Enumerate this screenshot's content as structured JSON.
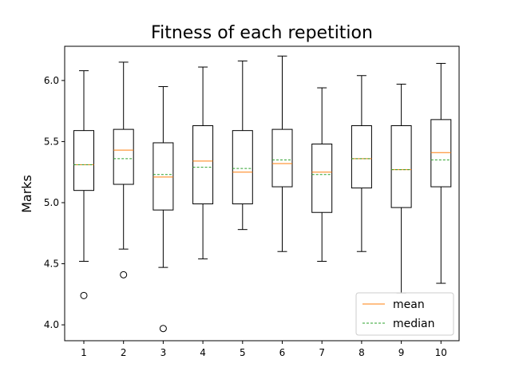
{
  "chart_data": {
    "type": "box",
    "title": "Fitness of each repetition",
    "xlabel": "",
    "ylabel": "Marks",
    "categories": [
      "1",
      "2",
      "3",
      "4",
      "5",
      "6",
      "7",
      "8",
      "9",
      "10"
    ],
    "ylim": [
      3.87,
      6.28
    ],
    "yticks": [
      "4.0",
      "4.5",
      "5.0",
      "5.5",
      "6.0"
    ],
    "grid": false,
    "legend_position": "bottom-right",
    "legend": [
      {
        "label": "mean",
        "style": "solid",
        "color": "#ff7f0e"
      },
      {
        "label": "median",
        "style": "dashed",
        "color": "#2ca02c"
      }
    ],
    "boxes": [
      {
        "category": "1",
        "whisker_low": 4.52,
        "q1": 5.1,
        "median": 5.31,
        "mean": 5.31,
        "q3": 5.59,
        "whisker_high": 6.08,
        "outliers": [
          4.24
        ]
      },
      {
        "category": "2",
        "whisker_low": 4.62,
        "q1": 5.15,
        "median": 5.36,
        "mean": 5.43,
        "q3": 5.6,
        "whisker_high": 6.15,
        "outliers": [
          4.41
        ]
      },
      {
        "category": "3",
        "whisker_low": 4.47,
        "q1": 4.94,
        "median": 5.23,
        "mean": 5.21,
        "q3": 5.49,
        "whisker_high": 5.95,
        "outliers": [
          3.97
        ]
      },
      {
        "category": "4",
        "whisker_low": 4.54,
        "q1": 4.99,
        "median": 5.29,
        "mean": 5.34,
        "q3": 5.63,
        "whisker_high": 6.11,
        "outliers": []
      },
      {
        "category": "5",
        "whisker_low": 4.78,
        "q1": 4.99,
        "median": 5.28,
        "mean": 5.25,
        "q3": 5.59,
        "whisker_high": 6.16,
        "outliers": []
      },
      {
        "category": "6",
        "whisker_low": 4.6,
        "q1": 5.13,
        "median": 5.35,
        "mean": 5.32,
        "q3": 5.6,
        "whisker_high": 6.2,
        "outliers": []
      },
      {
        "category": "7",
        "whisker_low": 4.52,
        "q1": 4.92,
        "median": 5.23,
        "mean": 5.25,
        "q3": 5.48,
        "whisker_high": 5.94,
        "outliers": []
      },
      {
        "category": "8",
        "whisker_low": 4.6,
        "q1": 5.12,
        "median": 5.36,
        "mean": 5.36,
        "q3": 5.63,
        "whisker_high": 6.04,
        "outliers": []
      },
      {
        "category": "9",
        "whisker_low": 4.26,
        "q1": 4.96,
        "median": 5.27,
        "mean": 5.27,
        "q3": 5.63,
        "whisker_high": 5.97,
        "outliers": []
      },
      {
        "category": "10",
        "whisker_low": 4.34,
        "q1": 5.13,
        "median": 5.35,
        "mean": 5.41,
        "q3": 5.68,
        "whisker_high": 6.14,
        "outliers": []
      }
    ]
  }
}
